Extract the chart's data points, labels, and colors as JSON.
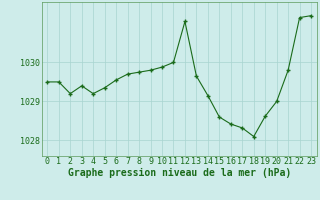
{
  "x": [
    0,
    1,
    2,
    3,
    4,
    5,
    6,
    7,
    8,
    9,
    10,
    11,
    12,
    13,
    14,
    15,
    16,
    17,
    18,
    19,
    20,
    21,
    22,
    23
  ],
  "y": [
    1029.5,
    1029.5,
    1029.2,
    1029.4,
    1029.2,
    1029.35,
    1029.55,
    1029.7,
    1029.75,
    1029.8,
    1029.88,
    1030.0,
    1031.05,
    1029.65,
    1029.15,
    1028.6,
    1028.42,
    1028.32,
    1028.1,
    1028.62,
    1029.0,
    1029.8,
    1031.15,
    1031.2
  ],
  "line_color": "#1a6b1a",
  "marker": "+",
  "marker_size": 3.5,
  "marker_lw": 1.0,
  "line_width": 0.8,
  "bg_color": "#ceecea",
  "grid_color": "#a8d4d0",
  "xlabel": "Graphe pression niveau de la mer (hPa)",
  "ylim": [
    1027.6,
    1031.55
  ],
  "yticks": [
    1028,
    1029,
    1030
  ],
  "xticks": [
    0,
    1,
    2,
    3,
    4,
    5,
    6,
    7,
    8,
    9,
    10,
    11,
    12,
    13,
    14,
    15,
    16,
    17,
    18,
    19,
    20,
    21,
    22,
    23
  ],
  "tick_color": "#1a6b1a",
  "label_color": "#1a6b1a",
  "label_fontsize": 6,
  "xlabel_fontsize": 7,
  "spine_color": "#5a9a5a"
}
